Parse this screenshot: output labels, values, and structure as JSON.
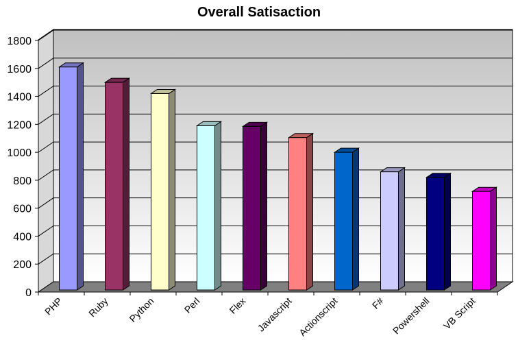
{
  "chart_data": {
    "type": "bar",
    "title": "Overall Satisaction",
    "xlabel": "",
    "ylabel": "",
    "ylim": [
      0,
      1800
    ],
    "yticks": [
      0,
      200,
      400,
      600,
      800,
      1000,
      1200,
      1400,
      1600,
      1800
    ],
    "grid": true,
    "legend": "none",
    "style": "3d-column",
    "categories": [
      "PHP",
      "Ruby",
      "Python",
      "Perl",
      "Flex",
      "Javascript",
      "Actionscript",
      "F#",
      "Powershell",
      "VB Script"
    ],
    "values": [
      1610,
      1500,
      1420,
      1190,
      1185,
      1105,
      1000,
      860,
      820,
      720
    ],
    "colors": [
      "#9999FF",
      "#993366",
      "#FFFFCC",
      "#CCFFFF",
      "#660066",
      "#FF8080",
      "#0066CC",
      "#CCCCFF",
      "#000080",
      "#FF00FF"
    ],
    "wall_color": "#c0c0c0",
    "floor_color": "#808080"
  }
}
